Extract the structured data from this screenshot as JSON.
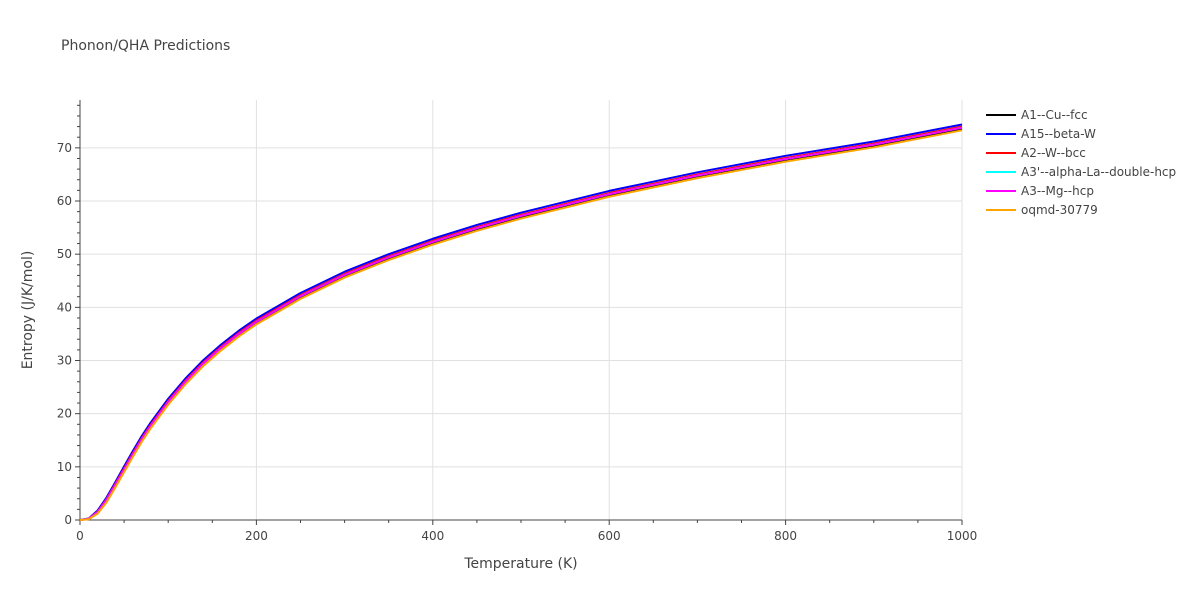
{
  "chart_data": {
    "type": "line",
    "title": "Phonon/QHA Predictions",
    "xlabel": "Temperature (K)",
    "ylabel": "Entropy (J/K/mol)",
    "xlim": [
      0,
      1000
    ],
    "ylim": [
      0,
      79
    ],
    "xticks": [
      0,
      200,
      400,
      600,
      800,
      1000
    ],
    "yticks": [
      0,
      10,
      20,
      30,
      40,
      50,
      60,
      70
    ],
    "grid": true,
    "legend_position": "right",
    "x": [
      0,
      10,
      20,
      30,
      40,
      50,
      60,
      70,
      80,
      100,
      120,
      140,
      160,
      180,
      200,
      250,
      300,
      350,
      400,
      450,
      500,
      600,
      700,
      800,
      900,
      1000
    ],
    "series": [
      {
        "name": "A1--Cu--fcc",
        "color": "#000000",
        "values": [
          0,
          0.2,
          1.4,
          3.6,
          6.4,
          9.3,
          12.2,
          15.0,
          17.5,
          22.0,
          25.9,
          29.3,
          32.2,
          34.8,
          37.1,
          41.9,
          45.9,
          49.2,
          52.1,
          54.7,
          57.0,
          61.1,
          64.6,
          67.7,
          70.4,
          73.6
        ]
      },
      {
        "name": "A15--beta-W",
        "color": "#0000ff",
        "values": [
          0,
          0.3,
          1.8,
          4.2,
          7.1,
          10.1,
          13.0,
          15.8,
          18.3,
          22.8,
          26.7,
          30.1,
          33.0,
          35.6,
          37.9,
          42.7,
          46.7,
          50.0,
          52.9,
          55.5,
          57.8,
          61.9,
          65.4,
          68.5,
          71.2,
          74.4
        ]
      },
      {
        "name": "A2--W--bcc",
        "color": "#ff0000",
        "values": [
          0,
          0.25,
          1.6,
          3.9,
          6.8,
          9.7,
          12.6,
          15.4,
          17.9,
          22.4,
          26.3,
          29.7,
          32.6,
          35.2,
          37.5,
          42.3,
          46.3,
          49.6,
          52.5,
          55.1,
          57.4,
          61.5,
          65.0,
          68.1,
          70.8,
          74.0
        ]
      },
      {
        "name": "A3'--alpha-La--double-hcp",
        "color": "#00ffff",
        "values": [
          0,
          0.25,
          1.5,
          3.8,
          6.6,
          9.5,
          12.4,
          15.2,
          17.7,
          22.2,
          26.1,
          29.5,
          32.4,
          35.0,
          37.3,
          42.1,
          46.1,
          49.4,
          52.3,
          54.9,
          57.2,
          61.3,
          64.8,
          67.9,
          70.6,
          73.8
        ]
      },
      {
        "name": "A3--Mg--hcp",
        "color": "#ff00ff",
        "values": [
          0,
          0.25,
          1.5,
          3.8,
          6.6,
          9.5,
          12.4,
          15.2,
          17.7,
          22.2,
          26.1,
          29.5,
          32.4,
          35.0,
          37.3,
          42.1,
          46.1,
          49.4,
          52.3,
          54.9,
          57.2,
          61.3,
          64.8,
          67.9,
          70.6,
          73.8
        ]
      },
      {
        "name": "oqmd-30779",
        "color": "#ffa500",
        "values": [
          0,
          0.15,
          1.2,
          3.3,
          6.1,
          9.0,
          11.9,
          14.7,
          17.2,
          21.7,
          25.6,
          29.0,
          31.9,
          34.5,
          36.8,
          41.6,
          45.6,
          48.9,
          51.8,
          54.4,
          56.7,
          60.8,
          64.3,
          67.4,
          70.1,
          73.3
        ]
      }
    ]
  }
}
